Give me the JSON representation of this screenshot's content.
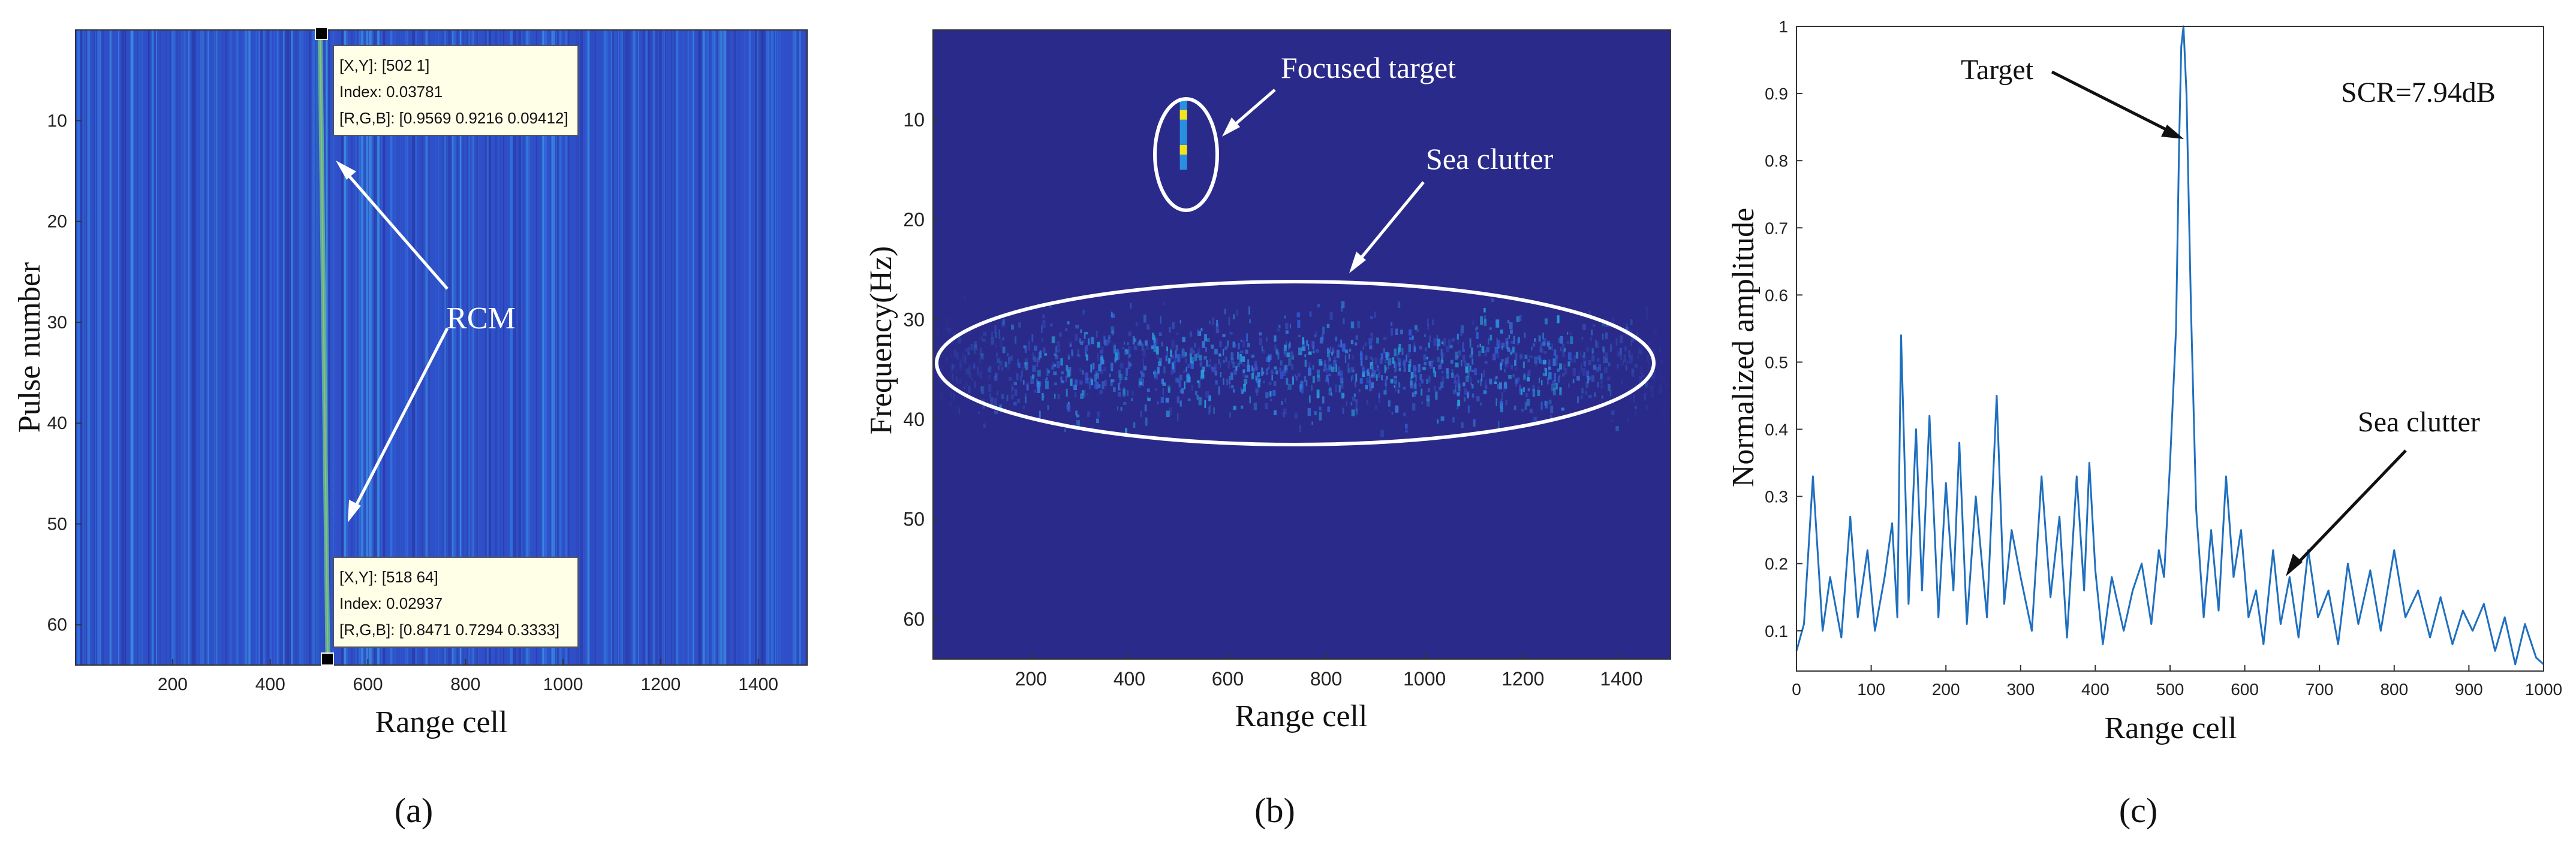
{
  "colors": {
    "background": "#ffffff",
    "map_base": "#2a2a8a",
    "map_clutter": "#2f5fd8",
    "map_bright": "#22c0d0",
    "map_peak": "#f2e41a",
    "line": "#1f6fbf",
    "annotation": "#ffffff",
    "datatip_bg": "#ffffe8"
  },
  "panel_labels": {
    "a": "(a)",
    "b": "(b)",
    "c": "(c)"
  },
  "panel_a": {
    "xlabel": "Range cell",
    "ylabel": "Pulse number",
    "annotation": "RCM",
    "datatip_top": {
      "xy": "[X,Y]: [502 1]",
      "index": "Index: 0.03781",
      "rgb": "[R,G,B]: [0.9569 0.9216 0.09412]"
    },
    "datatip_bottom": {
      "xy": "[X,Y]: [518 64]",
      "index": "Index: 0.02937",
      "rgb": "[R,G,B]: [0.8471 0.7294 0.3333]"
    }
  },
  "panel_b": {
    "xlabel": "Range cell",
    "ylabel": "Frequency(Hz)",
    "annotation_target": "Focused target",
    "annotation_clutter": "Sea clutter"
  },
  "panel_c": {
    "xlabel": "Range cell",
    "ylabel": "Normalized amplitude",
    "annotation_target": "Target",
    "annotation_clutter": "Sea clutter",
    "annotation_scr": "SCR=7.94dB"
  },
  "chart_data": [
    {
      "type": "heatmap",
      "panel": "a",
      "x_ticks": [
        200,
        400,
        600,
        800,
        1000,
        1200,
        1400
      ],
      "y_ticks": [
        10,
        20,
        30,
        40,
        50,
        60
      ],
      "xlim": [
        1,
        1500
      ],
      "ylim": [
        64,
        1
      ],
      "rcm_line": {
        "start": [
          502,
          1
        ],
        "end": [
          518,
          64
        ]
      }
    },
    {
      "type": "heatmap",
      "panel": "b",
      "x_ticks": [
        200,
        400,
        600,
        800,
        1000,
        1200,
        1400
      ],
      "y_ticks": [
        10,
        20,
        30,
        40,
        50,
        60
      ],
      "xlim": [
        1,
        1500
      ],
      "ylim": [
        64,
        1
      ],
      "focused_target": {
        "range_cell": 510,
        "frequency": [
          8,
          15
        ],
        "peaks": [
          9.5,
          13
        ]
      },
      "sea_clutter_band": {
        "range_cell": [
          1,
          1500
        ],
        "frequency": [
          29,
          40
        ],
        "center": 34.5
      }
    },
    {
      "type": "line",
      "panel": "c",
      "x_ticks": [
        0,
        100,
        200,
        300,
        400,
        500,
        600,
        700,
        800,
        900,
        1000
      ],
      "y_ticks": [
        0.1,
        0.2,
        0.3,
        0.4,
        0.5,
        0.6,
        0.7,
        0.8,
        0.9,
        1
      ],
      "xlim": [
        0,
        1000
      ],
      "ylim": [
        0.04,
        1
      ],
      "x": [
        0,
        10,
        22,
        35,
        45,
        60,
        72,
        82,
        95,
        105,
        118,
        128,
        135,
        140,
        150,
        160,
        168,
        178,
        190,
        200,
        210,
        218,
        228,
        240,
        255,
        268,
        278,
        288,
        300,
        315,
        328,
        340,
        352,
        362,
        375,
        385,
        392,
        400,
        410,
        422,
        438,
        450,
        462,
        475,
        485,
        492,
        500,
        508,
        512,
        515,
        518,
        522,
        528,
        535,
        545,
        555,
        565,
        575,
        585,
        595,
        605,
        615,
        625,
        638,
        648,
        660,
        672,
        685,
        698,
        712,
        725,
        738,
        752,
        768,
        782,
        800,
        815,
        832,
        848,
        862,
        878,
        892,
        905,
        920,
        935,
        948,
        962,
        975,
        990,
        1000
      ],
      "y": [
        0.07,
        0.11,
        0.33,
        0.1,
        0.18,
        0.09,
        0.27,
        0.12,
        0.22,
        0.1,
        0.18,
        0.26,
        0.12,
        0.54,
        0.14,
        0.4,
        0.16,
        0.42,
        0.12,
        0.32,
        0.16,
        0.38,
        0.11,
        0.3,
        0.12,
        0.45,
        0.14,
        0.25,
        0.18,
        0.1,
        0.33,
        0.15,
        0.27,
        0.09,
        0.33,
        0.16,
        0.35,
        0.19,
        0.08,
        0.18,
        0.1,
        0.16,
        0.2,
        0.11,
        0.22,
        0.18,
        0.35,
        0.55,
        0.82,
        0.97,
        1.0,
        0.9,
        0.58,
        0.28,
        0.12,
        0.25,
        0.13,
        0.33,
        0.18,
        0.25,
        0.12,
        0.16,
        0.08,
        0.22,
        0.11,
        0.18,
        0.09,
        0.22,
        0.12,
        0.16,
        0.08,
        0.2,
        0.11,
        0.19,
        0.1,
        0.22,
        0.12,
        0.16,
        0.09,
        0.15,
        0.08,
        0.13,
        0.1,
        0.14,
        0.07,
        0.12,
        0.05,
        0.11,
        0.06,
        0.05
      ]
    }
  ]
}
